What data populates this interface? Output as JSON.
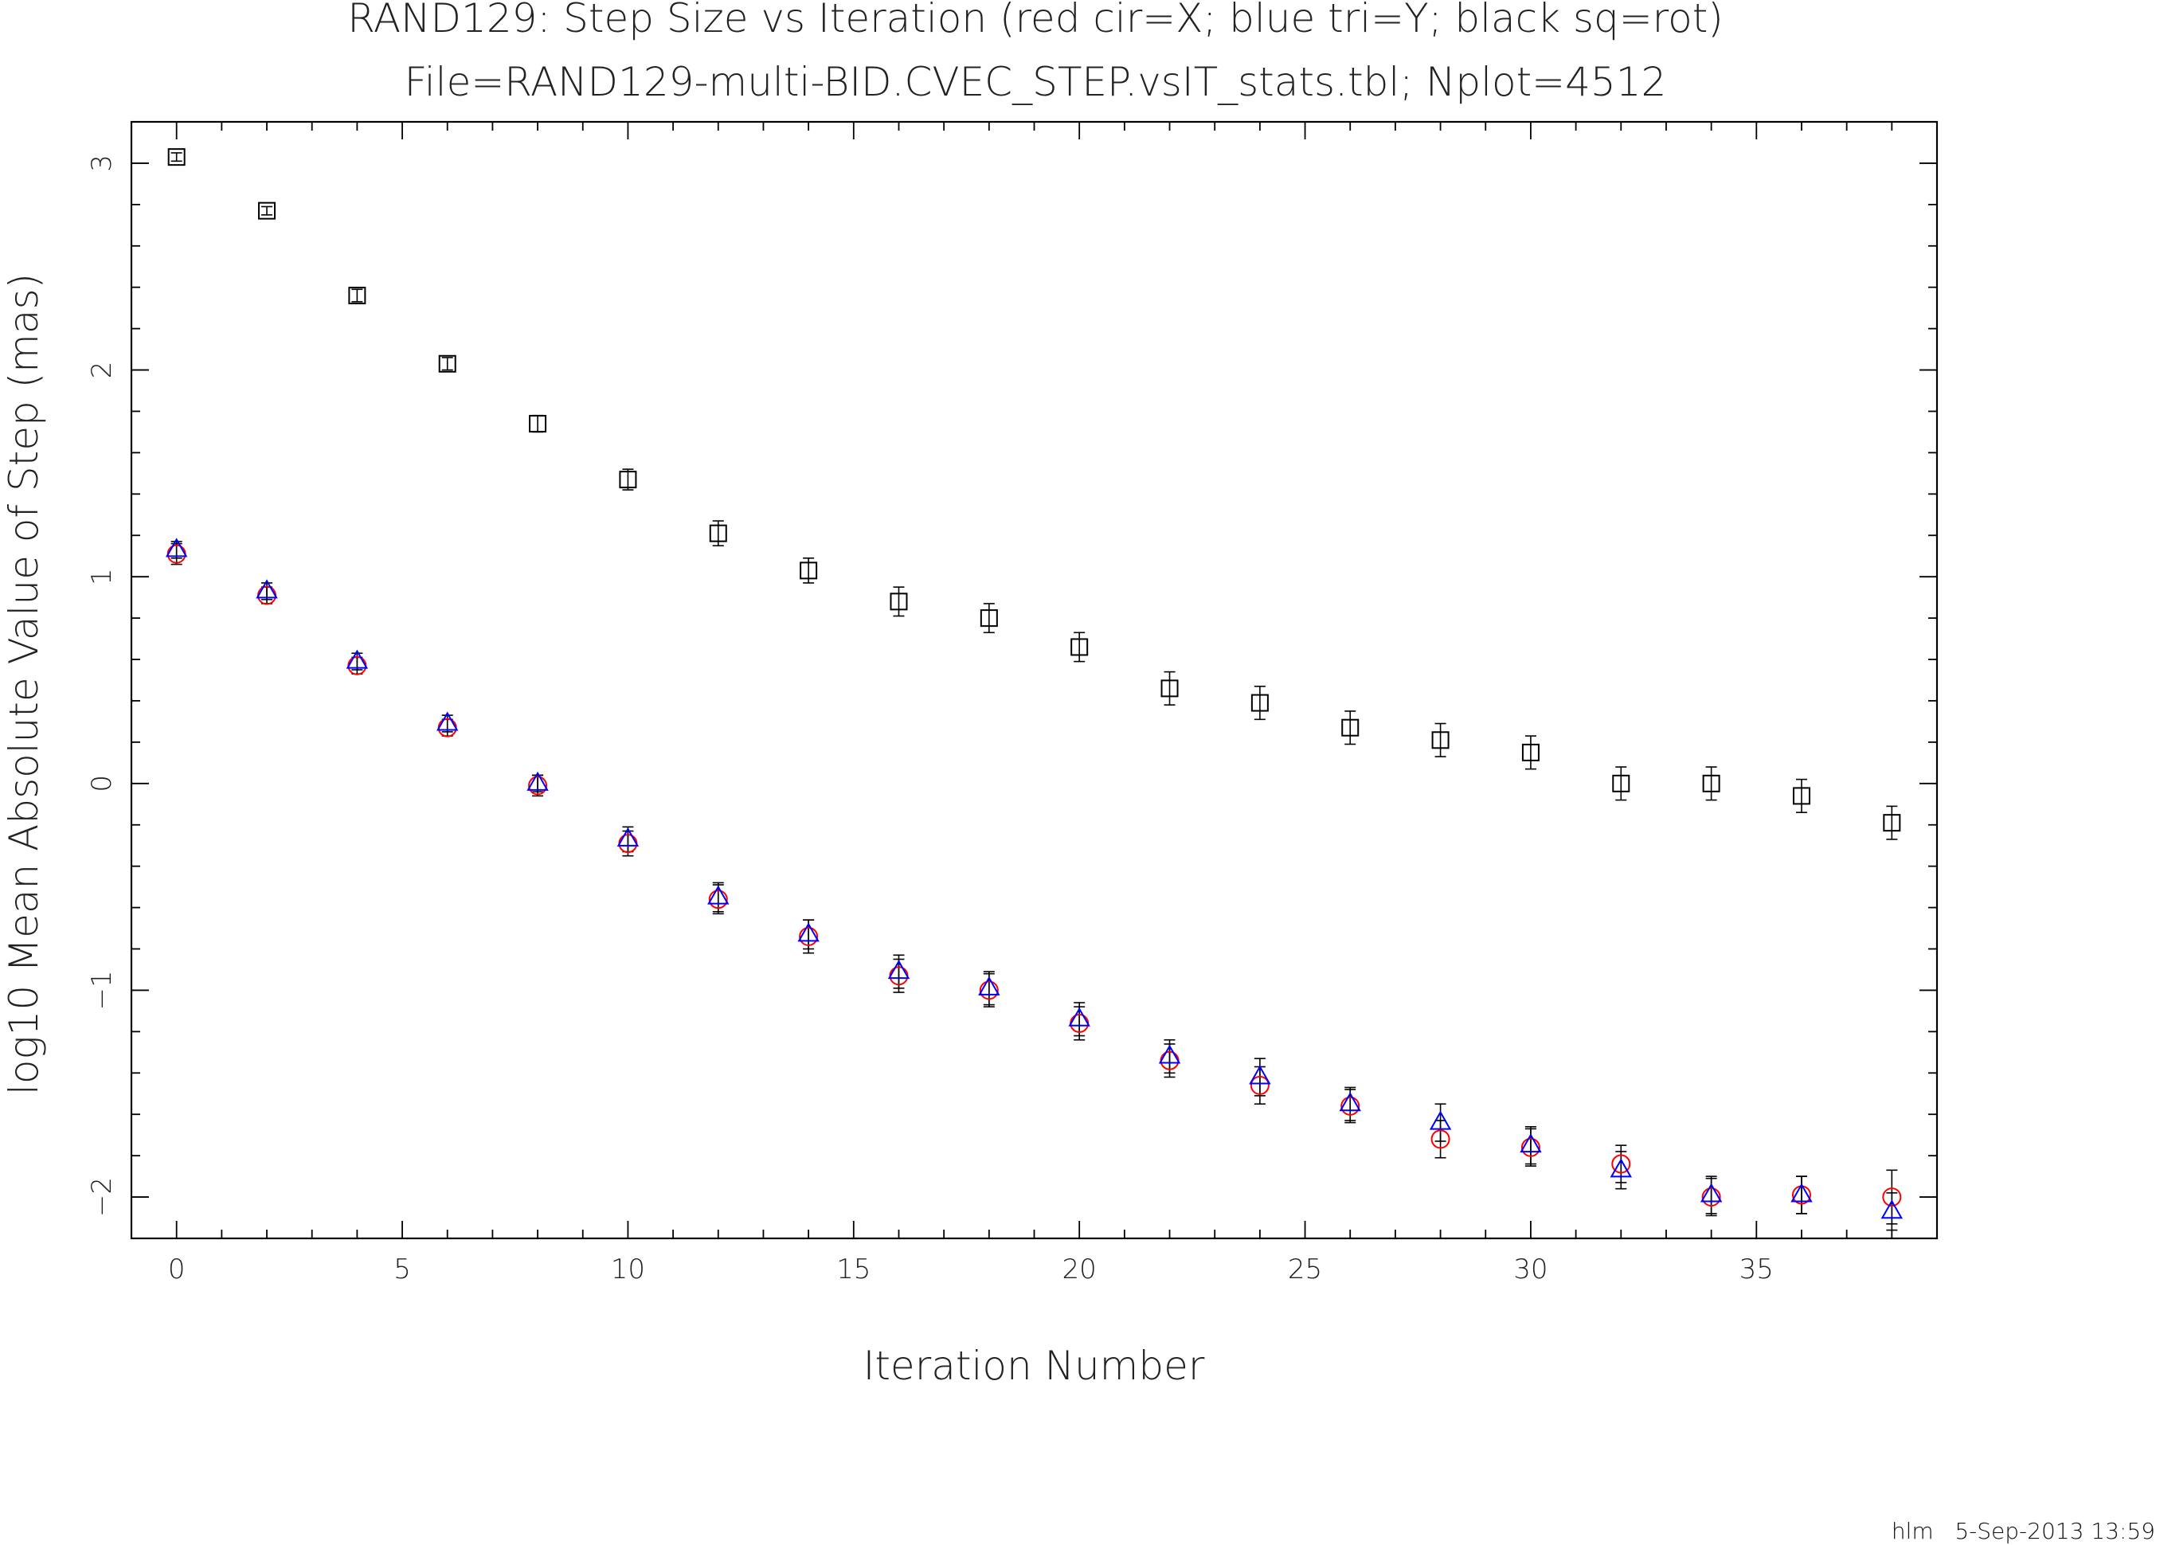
{
  "chart_data": {
    "type": "scatter",
    "title": "RAND129: Step Size vs Iteration (red cir=X; blue tri=Y; black sq=rot)",
    "subtitle": "File=RAND129-multi-BID.CVEC_STEP.vsIT_stats.tbl; Nplot=4512",
    "xlabel": "Iteration Number",
    "ylabel": "log10 Mean Absolute Value of Step (mas)",
    "xlim": [
      -1,
      39
    ],
    "ylim": [
      -2.2,
      3.2
    ],
    "x_ticks": [
      0,
      5,
      10,
      15,
      20,
      25,
      30,
      35
    ],
    "y_ticks": [
      -2,
      -1,
      0,
      1,
      2,
      3
    ],
    "x_tick_labels": [
      "0",
      "5",
      "10",
      "15",
      "20",
      "25",
      "30",
      "35"
    ],
    "y_tick_labels": [
      "−2",
      "−1",
      "0",
      "1",
      "2",
      "3"
    ],
    "x_minor_step": 1,
    "y_minor_step": 0.2,
    "grid": false,
    "x": [
      0,
      2,
      4,
      6,
      8,
      10,
      12,
      14,
      16,
      18,
      20,
      22,
      24,
      26,
      28,
      30,
      32,
      34,
      36,
      38
    ],
    "series": [
      {
        "marker": "circle",
        "color": "#ff0000",
        "values": [
          1.11,
          0.91,
          0.57,
          0.27,
          -0.01,
          -0.29,
          -0.56,
          -0.74,
          -0.93,
          -1.0,
          -1.16,
          -1.34,
          -1.46,
          -1.56,
          -1.72,
          -1.76,
          -1.84,
          -2.0,
          -1.99,
          -2.0
        ],
        "err": [
          0.05,
          0.04,
          0.04,
          0.04,
          0.05,
          0.06,
          0.07,
          0.08,
          0.08,
          0.08,
          0.08,
          0.08,
          0.09,
          0.08,
          0.09,
          0.09,
          0.09,
          0.09,
          0.09,
          0.13
        ]
      },
      {
        "marker": "triangle",
        "color": "#0000ff",
        "values": [
          1.13,
          0.93,
          0.59,
          0.29,
          0.0,
          -0.27,
          -0.55,
          -0.73,
          -0.91,
          -0.99,
          -1.14,
          -1.32,
          -1.42,
          -1.55,
          -1.64,
          -1.75,
          -1.87,
          -1.99,
          -1.99,
          -2.07
        ],
        "err": [
          0.04,
          0.04,
          0.04,
          0.04,
          0.04,
          0.06,
          0.07,
          0.07,
          0.08,
          0.08,
          0.08,
          0.08,
          0.09,
          0.08,
          0.09,
          0.09,
          0.09,
          0.09,
          0.09,
          0.09
        ]
      },
      {
        "marker": "square",
        "color": "#000000",
        "values": [
          3.03,
          2.77,
          2.36,
          2.03,
          1.74,
          1.47,
          1.21,
          1.03,
          0.88,
          0.8,
          0.66,
          0.46,
          0.39,
          0.27,
          0.21,
          0.15,
          0.0,
          0.0,
          -0.06,
          -0.19
        ],
        "err": [
          0.02,
          0.02,
          0.03,
          0.03,
          0.04,
          0.05,
          0.06,
          0.06,
          0.07,
          0.07,
          0.07,
          0.08,
          0.08,
          0.08,
          0.08,
          0.08,
          0.08,
          0.08,
          0.08,
          0.08
        ]
      }
    ]
  },
  "footer": {
    "text": "hlm   5-Sep-2013 13:59"
  }
}
